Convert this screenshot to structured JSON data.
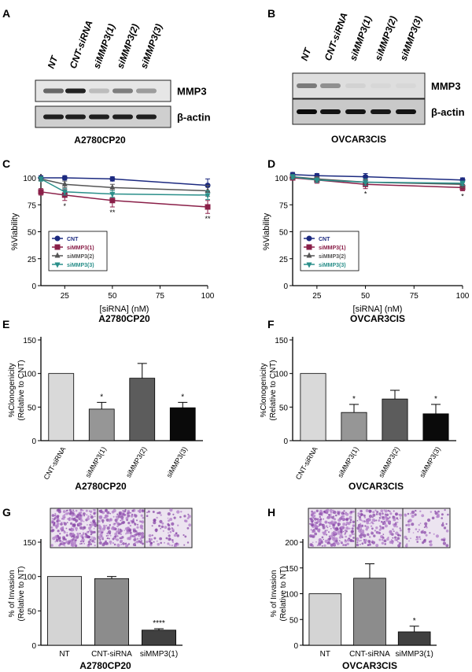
{
  "panel_letters": {
    "A": "A",
    "B": "B",
    "C": "C",
    "D": "D",
    "E": "E",
    "F": "F",
    "G": "G",
    "H": "H"
  },
  "blot_a": {
    "lanes": [
      "NT",
      "CNT-siRNA",
      "siMMP3(1)",
      "siMMP3(2)",
      "siMMP3(3)"
    ],
    "bands": [
      "MMP3",
      "β-actin"
    ],
    "caption": "A2780CP20",
    "intensity": [
      [
        0.55,
        0.85,
        0.18,
        0.45,
        0.32
      ],
      [
        0.85,
        0.85,
        0.85,
        0.85,
        0.85
      ]
    ]
  },
  "blot_b": {
    "lanes": [
      "NT",
      "CNT-siRNA",
      "siMMP3(1)",
      "siMMP3(2)",
      "siMMP3(3)"
    ],
    "bands": [
      "MMP3",
      "β-actin"
    ],
    "caption": "OVCAR3CIS",
    "intensity": [
      [
        0.45,
        0.35,
        0.05,
        0.03,
        0.03
      ],
      [
        0.95,
        0.9,
        0.9,
        0.88,
        0.9
      ]
    ]
  },
  "images_g": {
    "description": "transwell invasion images (NT, CNT-siRNA, siMMP3(1))"
  },
  "images_h": {
    "description": "transwell invasion images (NT, CNT-siRNA, siMMP3(1))"
  },
  "chart_data": [
    {
      "id": "C",
      "type": "line",
      "title": "A2780CP20",
      "xlabel": "[siRNA] (nM)",
      "ylabel": "%Viability",
      "x": [
        12.5,
        25,
        50,
        100
      ],
      "xticks": [
        25,
        50,
        75,
        100
      ],
      "yticks": [
        0,
        25,
        50,
        75,
        100
      ],
      "xlim": [
        12.5,
        100
      ],
      "ylim": [
        0,
        100
      ],
      "series": [
        {
          "name": "CNT",
          "values": [
            100,
            100,
            99,
            93
          ],
          "errors": [
            2,
            2,
            2,
            6
          ],
          "color": "#1c2a80",
          "marker": "circle"
        },
        {
          "name": "siMMP3(1)",
          "values": [
            87,
            84,
            79,
            73
          ],
          "errors": [
            3,
            5,
            6,
            6
          ],
          "color": "#8a1f48",
          "marker": "square"
        },
        {
          "name": "siMMP3(2)",
          "values": [
            99,
            94,
            91,
            88
          ],
          "errors": [
            2,
            3,
            3,
            5
          ],
          "color": "#555555",
          "marker": "triangle"
        },
        {
          "name": "siMMP3(3)",
          "values": [
            99,
            87,
            85,
            84
          ],
          "errors": [
            2,
            3,
            3,
            4
          ],
          "color": "#2a8f8a",
          "marker": "triangle-down"
        }
      ],
      "annotations": [
        {
          "x": 25,
          "text": "*"
        },
        {
          "x": 50,
          "text": "**"
        },
        {
          "x": 100,
          "text": "**"
        }
      ],
      "legend_position": "bottom-left"
    },
    {
      "id": "D",
      "type": "line",
      "title": "OVCAR3CIS",
      "xlabel": "[siRNA] (nM)",
      "ylabel": "%Viability",
      "x": [
        12.5,
        25,
        50,
        100
      ],
      "xticks": [
        25,
        50,
        75,
        100
      ],
      "yticks": [
        0,
        25,
        50,
        75,
        100
      ],
      "xlim": [
        12.5,
        100
      ],
      "ylim": [
        0,
        100
      ],
      "series": [
        {
          "name": "CNT",
          "values": [
            103,
            102,
            101,
            98
          ],
          "errors": [
            2,
            2,
            3,
            2
          ],
          "color": "#1c2a80",
          "marker": "circle"
        },
        {
          "name": "siMMP3(1)",
          "values": [
            100,
            98,
            94,
            91
          ],
          "errors": [
            2,
            3,
            4,
            3
          ],
          "color": "#8a1f48",
          "marker": "square"
        },
        {
          "name": "siMMP3(2)",
          "values": [
            101,
            99,
            96,
            94
          ],
          "errors": [
            2,
            2,
            3,
            3
          ],
          "color": "#555555",
          "marker": "triangle"
        },
        {
          "name": "siMMP3(3)",
          "values": [
            101,
            98,
            96,
            95
          ],
          "errors": [
            2,
            2,
            3,
            2
          ],
          "color": "#2a8f8a",
          "marker": "triangle-down"
        }
      ],
      "annotations": [
        {
          "x": 50,
          "text": "*"
        },
        {
          "x": 100,
          "text": "*"
        }
      ],
      "legend_position": "bottom-left"
    },
    {
      "id": "E",
      "type": "bar",
      "title": "A2780CP20",
      "ylabel": "%Clonogenicity (Relative to CNT)",
      "categories": [
        "CNT-siRNA",
        "siMMP3(1)",
        "siMMP3(2)",
        "siMMP3(3)"
      ],
      "values": [
        100,
        47,
        93,
        49
      ],
      "errors": [
        0,
        10,
        22,
        8
      ],
      "colors": [
        "#d9d9d9",
        "#969696",
        "#5c5c5c",
        "#0a0a0a"
      ],
      "yticks": [
        0,
        50,
        100,
        150
      ],
      "ylim": [
        0,
        150
      ],
      "annotations": [
        "",
        "*",
        "",
        "*"
      ]
    },
    {
      "id": "F",
      "type": "bar",
      "title": "OVCAR3CIS",
      "ylabel": "%Clonogenicity (Relative to CNT)",
      "categories": [
        "CNT-siRNA",
        "siMMP3(1)",
        "siMMP3(2)",
        "siMMP3(3)"
      ],
      "values": [
        100,
        42,
        62,
        40
      ],
      "errors": [
        0,
        12,
        13,
        14
      ],
      "colors": [
        "#d9d9d9",
        "#969696",
        "#5c5c5c",
        "#0a0a0a"
      ],
      "yticks": [
        0,
        50,
        100,
        150
      ],
      "ylim": [
        0,
        150
      ],
      "annotations": [
        "",
        "*",
        "",
        "*"
      ]
    },
    {
      "id": "G",
      "type": "bar",
      "title": "A2780CP20",
      "ylabel": "% of Invasion (Relative to NT)",
      "categories": [
        "NT",
        "CNT-siRNA",
        "siMMP3(1)"
      ],
      "values": [
        100,
        97,
        22
      ],
      "errors": [
        0,
        3,
        2
      ],
      "colors": [
        "#d4d4d4",
        "#8c8c8c",
        "#404040"
      ],
      "yticks": [
        0,
        50,
        100,
        150
      ],
      "ylim": [
        0,
        150
      ],
      "annotations": [
        "",
        "",
        "****"
      ]
    },
    {
      "id": "H",
      "type": "bar",
      "title": "OVCAR3CIS",
      "ylabel": "% of Invasion (Relative to NT)",
      "categories": [
        "NT",
        "CNT-siRNA",
        "siMMP3(1)"
      ],
      "values": [
        100,
        130,
        26
      ],
      "errors": [
        0,
        28,
        11
      ],
      "colors": [
        "#d4d4d4",
        "#8c8c8c",
        "#404040"
      ],
      "yticks": [
        0,
        50,
        100,
        150,
        200
      ],
      "ylim": [
        0,
        200
      ],
      "annotations": [
        "",
        "",
        "*"
      ]
    }
  ]
}
